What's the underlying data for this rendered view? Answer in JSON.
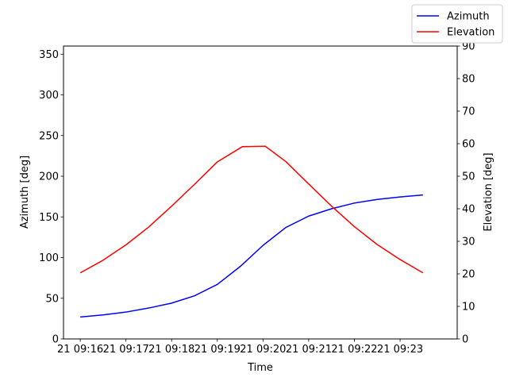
{
  "chart_data": {
    "type": "line",
    "xlabel": "Time",
    "ylabel_left": "Azimuth [deg]",
    "ylabel_right": "Elevation [deg]",
    "ylim_left": [
      0,
      360
    ],
    "ylim_right": [
      0,
      90
    ],
    "left_ticks": [
      0,
      50,
      100,
      150,
      200,
      250,
      300,
      350
    ],
    "right_ticks": [
      0,
      10,
      20,
      30,
      40,
      50,
      60,
      70,
      80,
      90
    ],
    "x_ticks": [
      "21 09:16",
      "21 09:17",
      "21 09:18",
      "21 09:19",
      "21 09:20",
      "21 09:21",
      "21 09:22",
      "21 09:23"
    ],
    "xlim": [
      "09:15:38",
      "09:24:15"
    ],
    "grid": false,
    "legend_position": "top-right",
    "x": [
      "09:16:00",
      "09:16:30",
      "09:17:00",
      "09:17:30",
      "09:18:00",
      "09:18:30",
      "09:19:00",
      "09:19:30",
      "09:20:00",
      "09:20:30",
      "09:21:00",
      "09:21:30",
      "09:22:00",
      "09:22:30",
      "09:23:00",
      "09:23:30"
    ],
    "x_elevation": [
      "09:16:00",
      "09:16:30",
      "09:17:00",
      "09:17:30",
      "09:18:00",
      "09:18:30",
      "09:19:00",
      "09:19:33",
      "09:20:03",
      "09:20:30",
      "09:21:00",
      "09:21:30",
      "09:22:00",
      "09:22:30",
      "09:23:00",
      "09:23:30"
    ],
    "series": [
      {
        "name": "Azimuth",
        "axis": "left",
        "color": "#0000ff",
        "values": [
          27,
          29.5,
          33,
          38,
          44,
          53,
          67,
          89,
          115,
          137,
          151,
          160,
          167,
          171.5,
          174.5,
          177
        ]
      },
      {
        "name": "Elevation",
        "axis": "right",
        "color": "#ff0000",
        "values": [
          20.3,
          24.2,
          28.9,
          34.4,
          40.8,
          47.5,
          54.4,
          59.1,
          59.2,
          54.5,
          47.6,
          40.8,
          34.5,
          29,
          24.4,
          20.3
        ]
      }
    ]
  }
}
